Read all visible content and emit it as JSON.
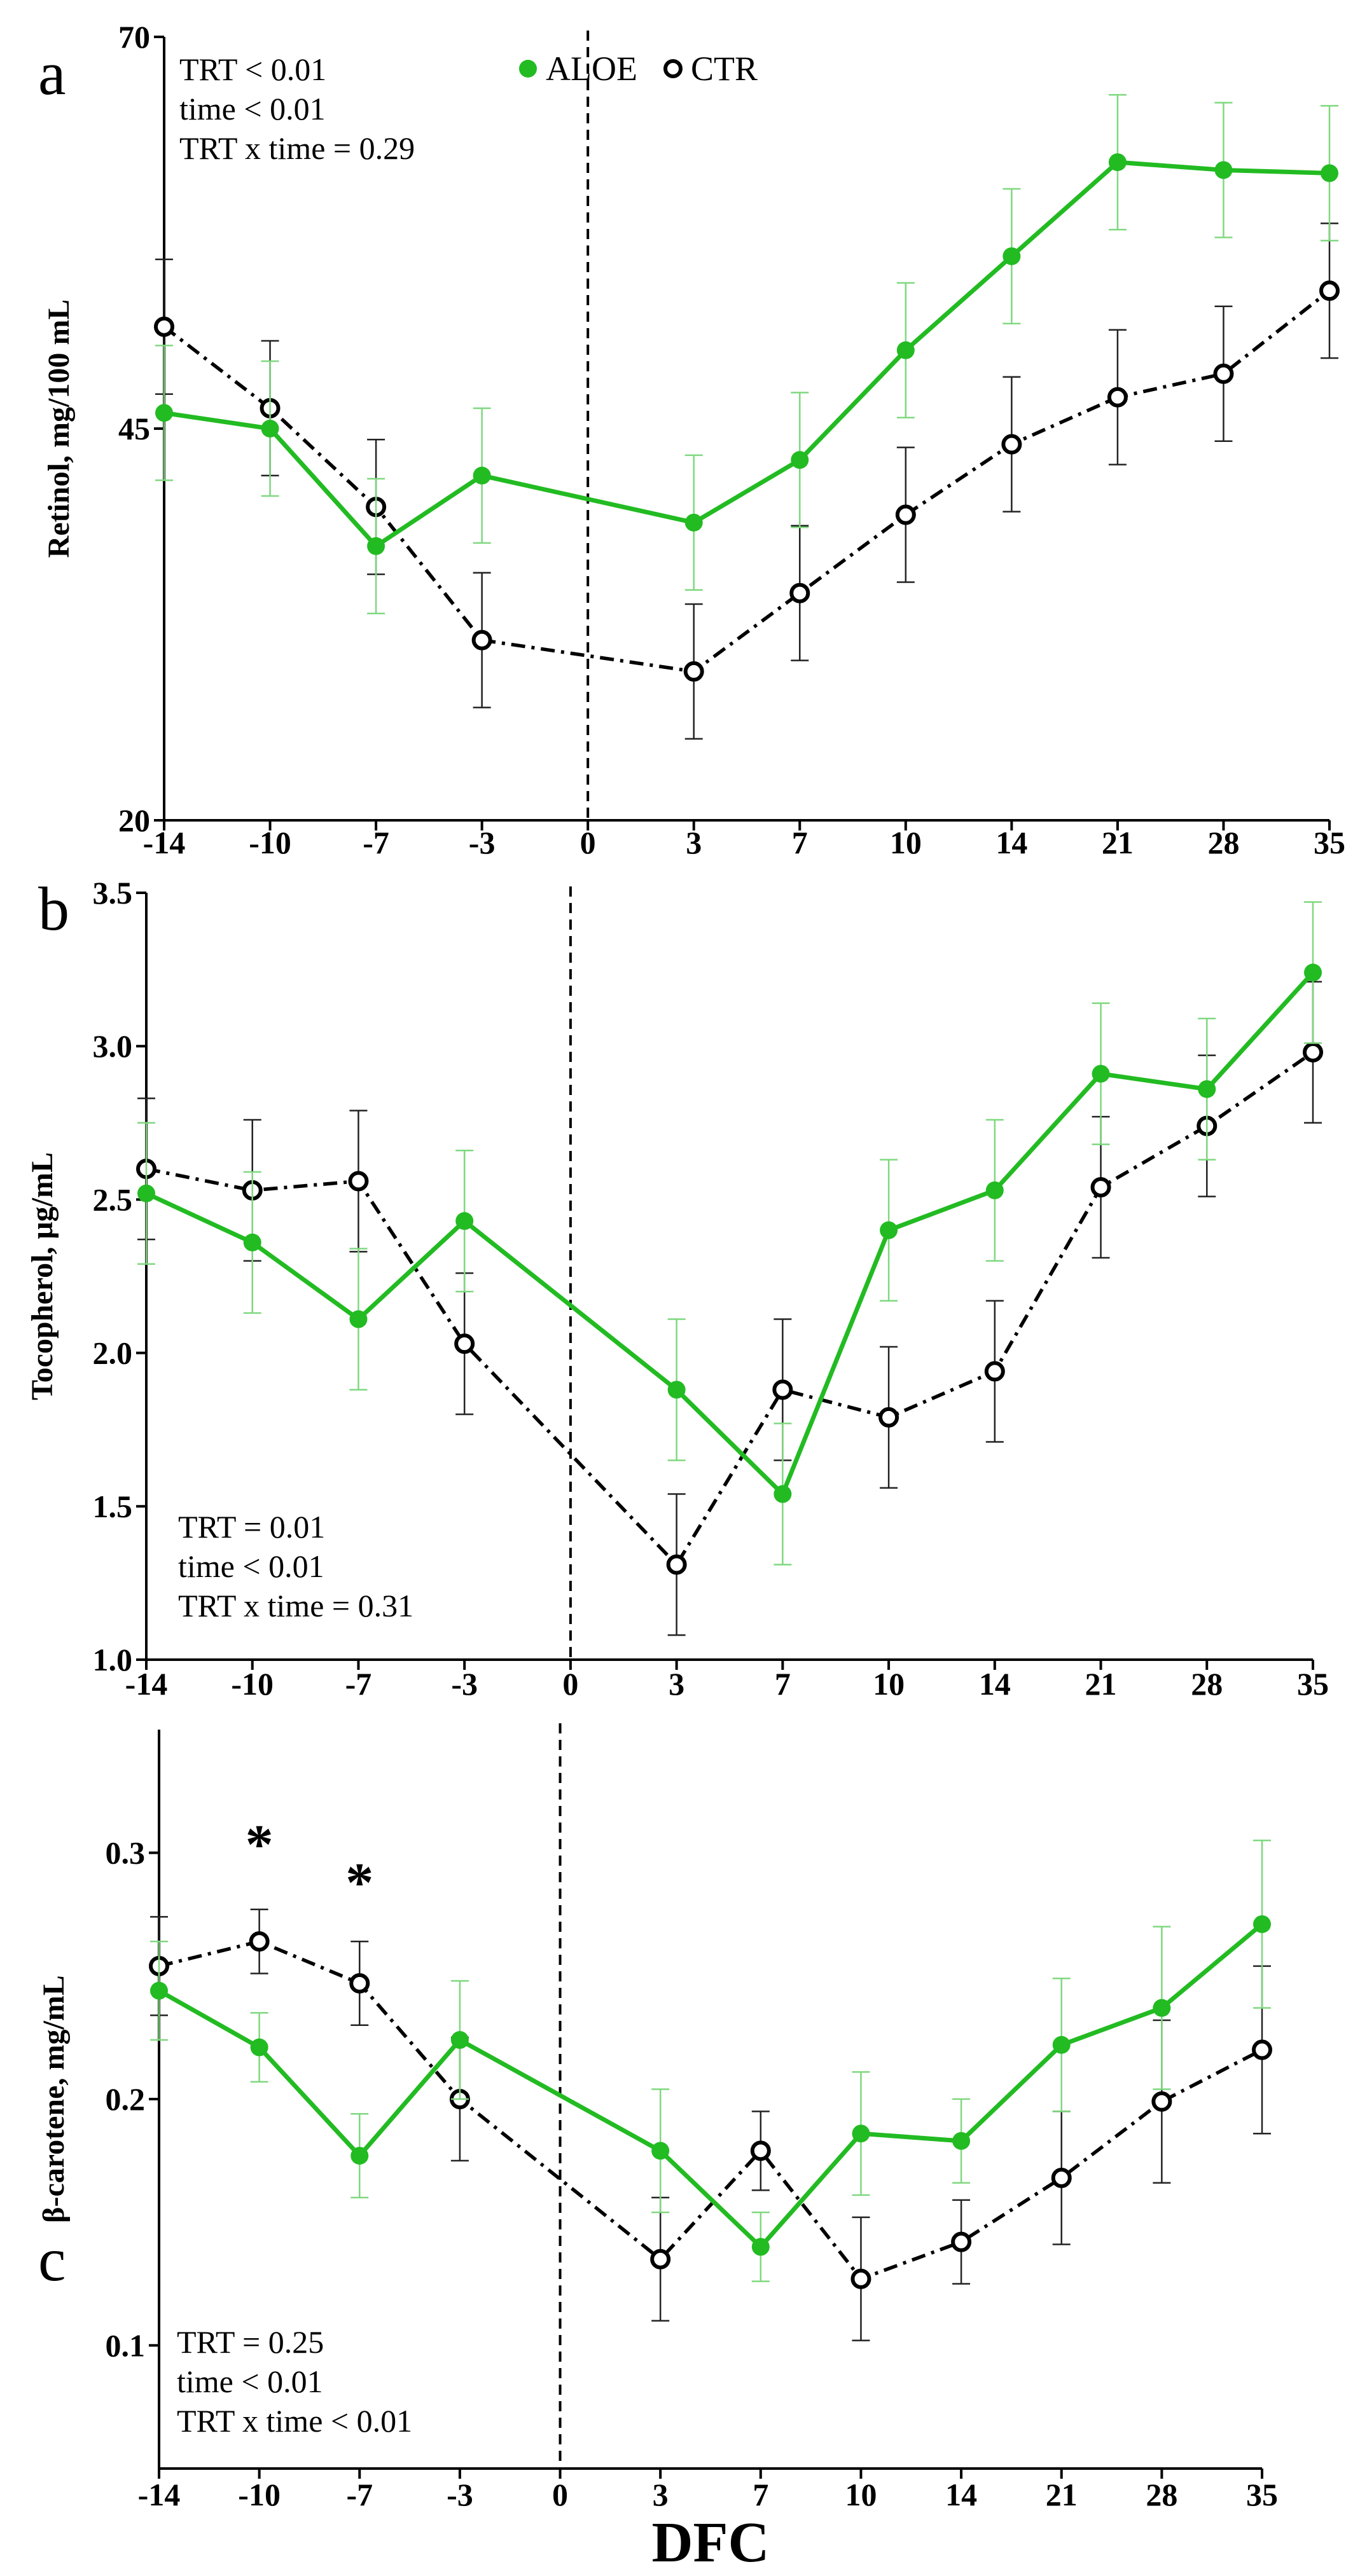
{
  "chart_data": [
    {
      "type": "line",
      "panel_label": "a",
      "ylabel": "Retinol, mg/100 mL",
      "ylim": [
        20,
        70
      ],
      "yticks": [
        20,
        45,
        70
      ],
      "x": [
        -14,
        -10,
        -7,
        -3,
        0,
        3,
        7,
        10,
        14,
        21,
        28,
        35
      ],
      "x_labels": [
        "-14",
        "-10",
        "-7",
        "-3",
        "0",
        "3",
        "7",
        "10",
        "14",
        "21",
        "28",
        "35"
      ],
      "vline_x": 0,
      "series": [
        {
          "name": "ALOE",
          "color": "#22bb22",
          "x": [
            -14,
            -10,
            -7,
            -3,
            3,
            7,
            10,
            14,
            21,
            28,
            35
          ],
          "values": [
            46,
            45,
            37.5,
            42,
            39,
            43,
            50,
            56,
            62,
            61.5,
            61.3
          ],
          "errors": [
            4.3,
            4.3,
            4.3,
            4.3,
            4.3,
            4.3,
            4.3,
            4.3,
            4.3,
            4.3,
            4.3
          ]
        },
        {
          "name": "CTR",
          "color": "#000000",
          "x": [
            -14,
            -10,
            -7,
            -3,
            3,
            7,
            10,
            14,
            21,
            28,
            35
          ],
          "values": [
            51.5,
            46.3,
            40,
            31.5,
            29.5,
            34.5,
            39.5,
            44,
            47,
            48.5,
            53.8
          ],
          "errors": [
            4.3,
            4.3,
            4.3,
            4.3,
            4.3,
            4.3,
            4.3,
            4.3,
            4.3,
            4.3,
            4.3
          ]
        }
      ],
      "stats": [
        "TRT < 0.01",
        "time < 0.01",
        "TRT x time = 0.29"
      ],
      "stats_position": "top-left",
      "legend": [
        "ALOE",
        "CTR"
      ],
      "legend_position": "top"
    },
    {
      "type": "line",
      "panel_label": "b",
      "ylabel": "Tocopherol, μg/mL",
      "ylim": [
        1.0,
        3.5
      ],
      "yticks": [
        1.0,
        1.5,
        2.0,
        2.5,
        3.0,
        3.5
      ],
      "ytick_labels": [
        "1.0",
        "1.5",
        "2.0",
        "2.5",
        "3.0",
        "3.5"
      ],
      "x": [
        -14,
        -10,
        -7,
        -3,
        0,
        3,
        7,
        10,
        14,
        21,
        28,
        35
      ],
      "x_labels": [
        "-14",
        "-10",
        "-7",
        "-3",
        "0",
        "3",
        "7",
        "10",
        "14",
        "21",
        "28",
        "35"
      ],
      "vline_x": 0,
      "series": [
        {
          "name": "ALOE",
          "color": "#22bb22",
          "x": [
            -14,
            -10,
            -7,
            -3,
            3,
            7,
            10,
            14,
            21,
            28,
            35
          ],
          "values": [
            2.52,
            2.36,
            2.11,
            2.43,
            1.88,
            1.54,
            2.4,
            2.53,
            2.91,
            2.86,
            3.24
          ],
          "errors": [
            0.23,
            0.23,
            0.23,
            0.23,
            0.23,
            0.23,
            0.23,
            0.23,
            0.23,
            0.23,
            0.23
          ]
        },
        {
          "name": "CTR",
          "color": "#000000",
          "x": [
            -14,
            -10,
            -7,
            -3,
            3,
            7,
            10,
            14,
            21,
            28,
            35
          ],
          "values": [
            2.6,
            2.53,
            2.56,
            2.03,
            1.31,
            1.88,
            1.79,
            1.94,
            2.54,
            2.74,
            2.98
          ],
          "errors": [
            0.23,
            0.23,
            0.23,
            0.23,
            0.23,
            0.23,
            0.23,
            0.23,
            0.23,
            0.23,
            0.23
          ]
        }
      ],
      "stats": [
        "TRT = 0.01",
        "time < 0.01",
        "TRT x time = 0.31"
      ],
      "stats_position": "bottom-left"
    },
    {
      "type": "line",
      "panel_label": "c",
      "ylabel": "β-carotene, mg/mL",
      "ylim": [
        0.05,
        0.35
      ],
      "yticks": [
        0.1,
        0.2,
        0.3
      ],
      "ytick_labels": [
        "0.1",
        "0.2",
        "0.3"
      ],
      "x": [
        -14,
        -10,
        -7,
        -3,
        0,
        3,
        7,
        10,
        14,
        21,
        28,
        35
      ],
      "x_labels": [
        "-14",
        "-10",
        "-7",
        "-3",
        "0",
        "3",
        "7",
        "10",
        "14",
        "21",
        "28",
        "35"
      ],
      "xlabel": "DFC",
      "vline_x": 0,
      "series": [
        {
          "name": "ALOE",
          "color": "#22bb22",
          "x": [
            -14,
            -10,
            -7,
            -3,
            3,
            7,
            10,
            14,
            21,
            28,
            35
          ],
          "values": [
            0.244,
            0.221,
            0.177,
            0.224,
            0.179,
            0.14,
            0.186,
            0.183,
            0.222,
            0.237,
            0.271
          ],
          "errors": [
            0.02,
            0.014,
            0.017,
            0.024,
            0.025,
            0.014,
            0.025,
            0.017,
            0.027,
            0.033,
            0.034
          ]
        },
        {
          "name": "CTR",
          "color": "#000000",
          "x": [
            -14,
            -10,
            -7,
            -3,
            3,
            7,
            10,
            14,
            21,
            28,
            35
          ],
          "values": [
            0.254,
            0.264,
            0.247,
            0.2,
            0.135,
            0.179,
            0.127,
            0.142,
            0.168,
            0.199,
            0.22
          ],
          "errors": [
            0.02,
            0.013,
            0.017,
            0.025,
            0.025,
            0.016,
            0.025,
            0.017,
            0.027,
            0.033,
            0.034
          ]
        }
      ],
      "stats": [
        "TRT = 0.25",
        "time < 0.01",
        "TRT x time < 0.01"
      ],
      "stats_position": "bottom-left",
      "significance_markers": [
        {
          "x": -10,
          "label": "*"
        },
        {
          "x": -7,
          "label": "*"
        }
      ]
    }
  ]
}
